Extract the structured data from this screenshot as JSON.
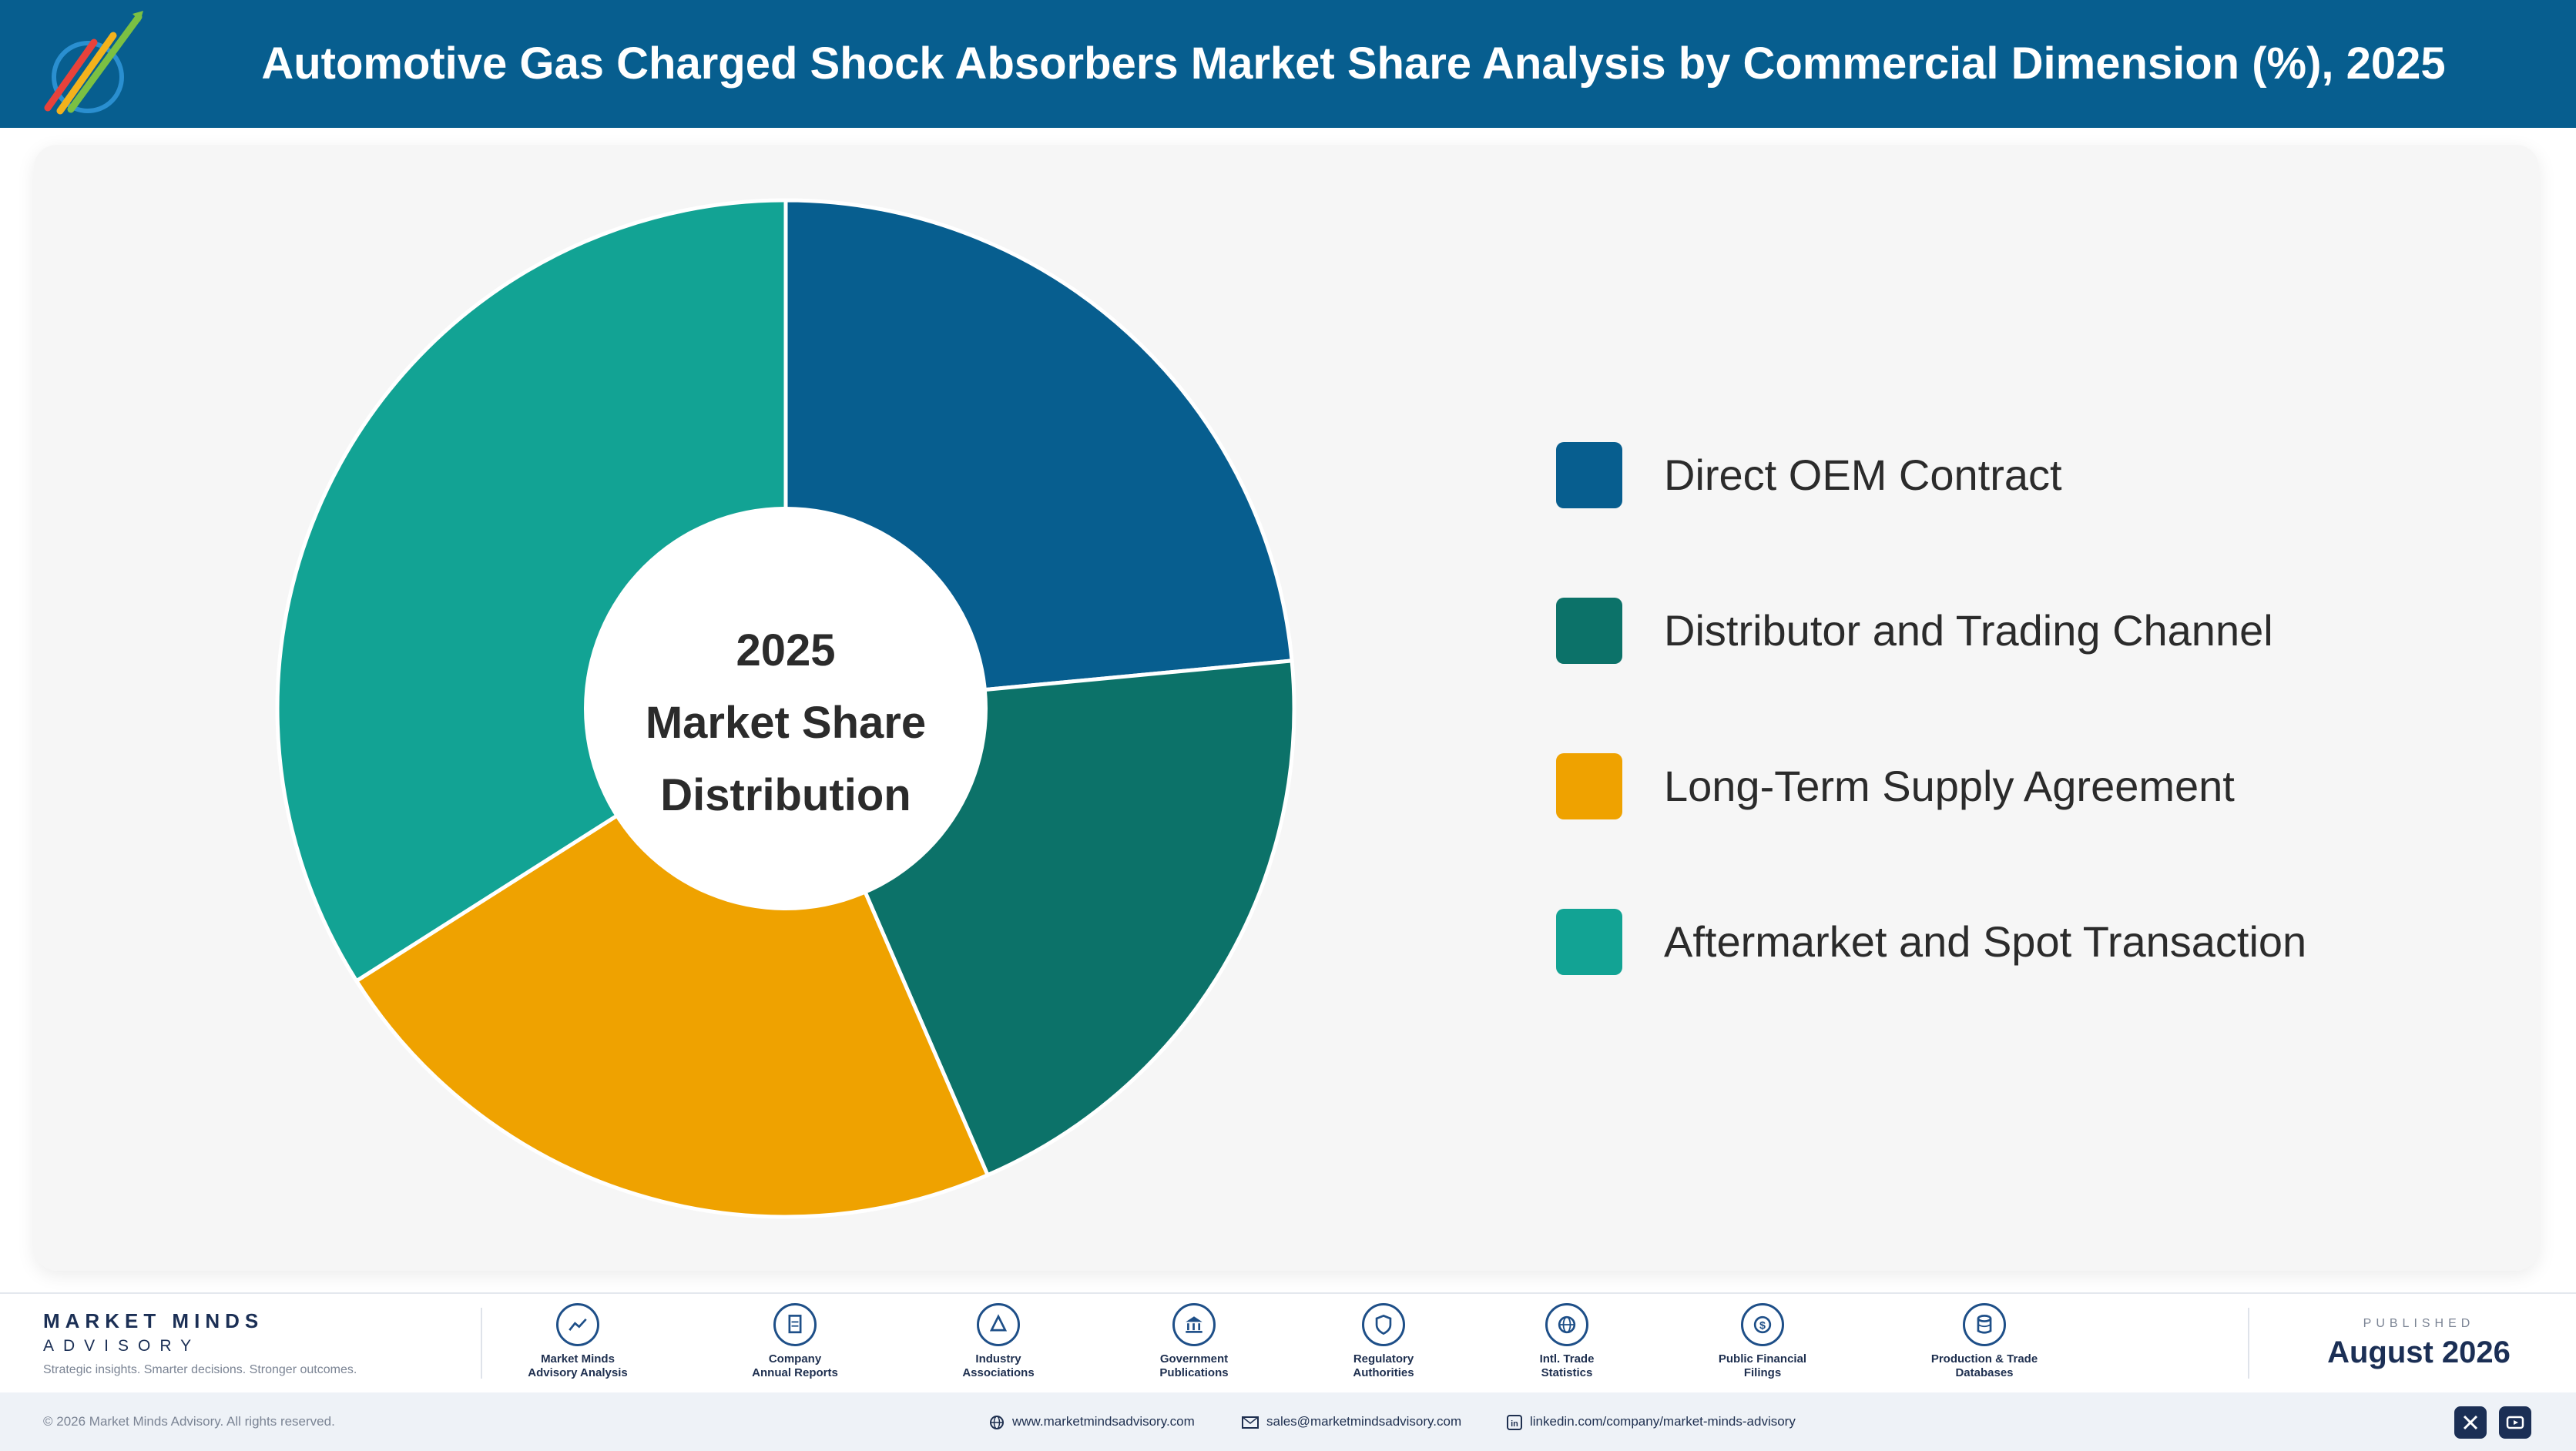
{
  "header": {
    "title": "Automotive Gas Charged Shock Absorbers Market Share Analysis by Commercial Dimension (%), 2025",
    "logo_text": "Market Minds Advisory"
  },
  "chart_data": {
    "type": "pie",
    "donut": true,
    "center_label": [
      "2025",
      "Market Share",
      "Distribution"
    ],
    "legend_position": "right",
    "series": [
      {
        "name": "Direct OEM Contract",
        "value": 23.5,
        "color": "#075e8f"
      },
      {
        "name": "Distributor and Trading Channel",
        "value": 20.0,
        "color": "#0c7269"
      },
      {
        "name": "Long-Term Supply Agreement",
        "value": 22.5,
        "color": "#efa200"
      },
      {
        "name": "Aftermarket and Spot Transaction",
        "value": 34.0,
        "color": "#12a394"
      }
    ]
  },
  "footer": {
    "brand_name": "MARKET MINDS",
    "brand_sub": "ADVISORY",
    "brand_tagline": "Strategic insights. Smarter decisions. Stronger outcomes.",
    "sources": [
      {
        "label": "Market Minds\nAdvisory Analysis",
        "icon": "trend-icon"
      },
      {
        "label": "Company\nAnnual Reports",
        "icon": "document-icon"
      },
      {
        "label": "Industry\nAssociations",
        "icon": "network-icon"
      },
      {
        "label": "Government\nPublications",
        "icon": "government-icon"
      },
      {
        "label": "Regulatory\nAuthorities",
        "icon": "shield-icon"
      },
      {
        "label": "Intl. Trade\nStatistics",
        "icon": "globe-icon"
      },
      {
        "label": "Public Financial\nFilings",
        "icon": "dollar-icon"
      },
      {
        "label": "Production & Trade\nDatabases",
        "icon": "database-icon"
      }
    ],
    "published_label": "PUBLISHED",
    "published_date": "August 2026",
    "copyright": "© 2026 Market Minds Advisory. All rights reserved.",
    "website": "www.marketmindsadvisory.com",
    "email": "sales@marketmindsadvisory.com",
    "linkedin": "linkedin.com/company/market-minds-advisory",
    "social": [
      "x-icon",
      "youtube-icon"
    ]
  }
}
